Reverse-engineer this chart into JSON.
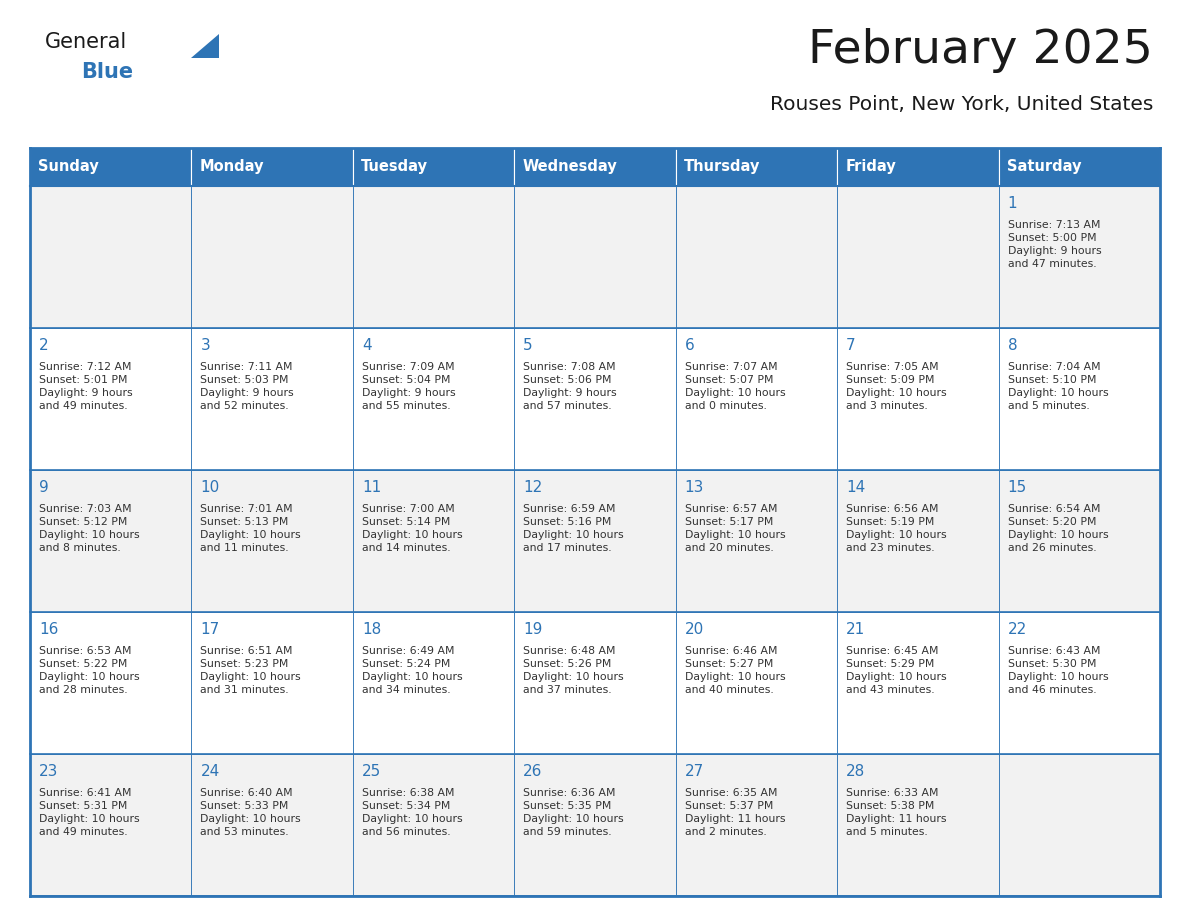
{
  "title": "February 2025",
  "subtitle": "Rouses Point, New York, United States",
  "header_bg": "#2E74B5",
  "header_text_color": "#FFFFFF",
  "cell_bg": "#FFFFFF",
  "cell_alt_bg": "#F2F2F2",
  "border_color": "#2E74B5",
  "title_color": "#1A1A1A",
  "subtitle_color": "#1A1A1A",
  "day_number_color": "#2E74B5",
  "cell_text_color": "#333333",
  "days_of_week": [
    "Sunday",
    "Monday",
    "Tuesday",
    "Wednesday",
    "Thursday",
    "Friday",
    "Saturday"
  ],
  "logo_general_color": "#1A1A1A",
  "logo_blue_color": "#2E74B5",
  "calendar_data": [
    [
      null,
      null,
      null,
      null,
      null,
      null,
      {
        "day": "1",
        "sunrise": "7:13 AM",
        "sunset": "5:00 PM",
        "daylight1": "9 hours",
        "daylight2": "and 47 minutes."
      }
    ],
    [
      {
        "day": "2",
        "sunrise": "7:12 AM",
        "sunset": "5:01 PM",
        "daylight1": "9 hours",
        "daylight2": "and 49 minutes."
      },
      {
        "day": "3",
        "sunrise": "7:11 AM",
        "sunset": "5:03 PM",
        "daylight1": "9 hours",
        "daylight2": "and 52 minutes."
      },
      {
        "day": "4",
        "sunrise": "7:09 AM",
        "sunset": "5:04 PM",
        "daylight1": "9 hours",
        "daylight2": "and 55 minutes."
      },
      {
        "day": "5",
        "sunrise": "7:08 AM",
        "sunset": "5:06 PM",
        "daylight1": "9 hours",
        "daylight2": "and 57 minutes."
      },
      {
        "day": "6",
        "sunrise": "7:07 AM",
        "sunset": "5:07 PM",
        "daylight1": "10 hours",
        "daylight2": "and 0 minutes."
      },
      {
        "day": "7",
        "sunrise": "7:05 AM",
        "sunset": "5:09 PM",
        "daylight1": "10 hours",
        "daylight2": "and 3 minutes."
      },
      {
        "day": "8",
        "sunrise": "7:04 AM",
        "sunset": "5:10 PM",
        "daylight1": "10 hours",
        "daylight2": "and 5 minutes."
      }
    ],
    [
      {
        "day": "9",
        "sunrise": "7:03 AM",
        "sunset": "5:12 PM",
        "daylight1": "10 hours",
        "daylight2": "and 8 minutes."
      },
      {
        "day": "10",
        "sunrise": "7:01 AM",
        "sunset": "5:13 PM",
        "daylight1": "10 hours",
        "daylight2": "and 11 minutes."
      },
      {
        "day": "11",
        "sunrise": "7:00 AM",
        "sunset": "5:14 PM",
        "daylight1": "10 hours",
        "daylight2": "and 14 minutes."
      },
      {
        "day": "12",
        "sunrise": "6:59 AM",
        "sunset": "5:16 PM",
        "daylight1": "10 hours",
        "daylight2": "and 17 minutes."
      },
      {
        "day": "13",
        "sunrise": "6:57 AM",
        "sunset": "5:17 PM",
        "daylight1": "10 hours",
        "daylight2": "and 20 minutes."
      },
      {
        "day": "14",
        "sunrise": "6:56 AM",
        "sunset": "5:19 PM",
        "daylight1": "10 hours",
        "daylight2": "and 23 minutes."
      },
      {
        "day": "15",
        "sunrise": "6:54 AM",
        "sunset": "5:20 PM",
        "daylight1": "10 hours",
        "daylight2": "and 26 minutes."
      }
    ],
    [
      {
        "day": "16",
        "sunrise": "6:53 AM",
        "sunset": "5:22 PM",
        "daylight1": "10 hours",
        "daylight2": "and 28 minutes."
      },
      {
        "day": "17",
        "sunrise": "6:51 AM",
        "sunset": "5:23 PM",
        "daylight1": "10 hours",
        "daylight2": "and 31 minutes."
      },
      {
        "day": "18",
        "sunrise": "6:49 AM",
        "sunset": "5:24 PM",
        "daylight1": "10 hours",
        "daylight2": "and 34 minutes."
      },
      {
        "day": "19",
        "sunrise": "6:48 AM",
        "sunset": "5:26 PM",
        "daylight1": "10 hours",
        "daylight2": "and 37 minutes."
      },
      {
        "day": "20",
        "sunrise": "6:46 AM",
        "sunset": "5:27 PM",
        "daylight1": "10 hours",
        "daylight2": "and 40 minutes."
      },
      {
        "day": "21",
        "sunrise": "6:45 AM",
        "sunset": "5:29 PM",
        "daylight1": "10 hours",
        "daylight2": "and 43 minutes."
      },
      {
        "day": "22",
        "sunrise": "6:43 AM",
        "sunset": "5:30 PM",
        "daylight1": "10 hours",
        "daylight2": "and 46 minutes."
      }
    ],
    [
      {
        "day": "23",
        "sunrise": "6:41 AM",
        "sunset": "5:31 PM",
        "daylight1": "10 hours",
        "daylight2": "and 49 minutes."
      },
      {
        "day": "24",
        "sunrise": "6:40 AM",
        "sunset": "5:33 PM",
        "daylight1": "10 hours",
        "daylight2": "and 53 minutes."
      },
      {
        "day": "25",
        "sunrise": "6:38 AM",
        "sunset": "5:34 PM",
        "daylight1": "10 hours",
        "daylight2": "and 56 minutes."
      },
      {
        "day": "26",
        "sunrise": "6:36 AM",
        "sunset": "5:35 PM",
        "daylight1": "10 hours",
        "daylight2": "and 59 minutes."
      },
      {
        "day": "27",
        "sunrise": "6:35 AM",
        "sunset": "5:37 PM",
        "daylight1": "11 hours",
        "daylight2": "and 2 minutes."
      },
      {
        "day": "28",
        "sunrise": "6:33 AM",
        "sunset": "5:38 PM",
        "daylight1": "11 hours",
        "daylight2": "and 5 minutes."
      },
      null
    ]
  ],
  "figsize": [
    11.88,
    9.18
  ],
  "dpi": 100
}
